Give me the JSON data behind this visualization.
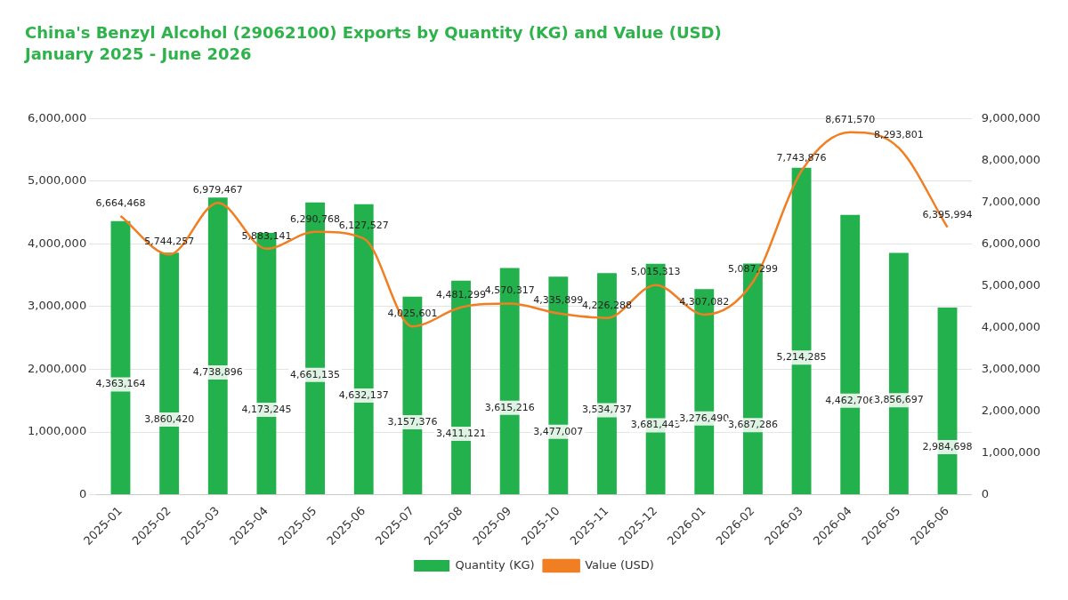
{
  "chart_data": {
    "type": "bar",
    "title": "China's Benzyl Alcohol (29062100) Exports by Quantity (KG) and Value (USD)",
    "subtitle": "January 2025 - June 2026",
    "categories": [
      "2025-01",
      "2025-02",
      "2025-03",
      "2025-04",
      "2025-05",
      "2025-06",
      "2025-07",
      "2025-08",
      "2025-09",
      "2025-10",
      "2025-11",
      "2025-12",
      "2026-01",
      "2026-02",
      "2026-03",
      "2026-04",
      "2026-05",
      "2026-06"
    ],
    "series": [
      {
        "name": "Quantity (KG)",
        "color": "#22b14c",
        "values": [
          4363164,
          3860420,
          4738896,
          4173245,
          4661135,
          4632137,
          3157376,
          3411121,
          3615216,
          3477007,
          3534737,
          3681443,
          3276490,
          3687286,
          5214285,
          4462706,
          3856697,
          2984698
        ],
        "value_labels": [
          "4,363,164",
          "3,860,420",
          "4,738,896",
          "4,173,245",
          "4,661,135",
          "4,632,137",
          "3,157,376",
          "3,411,121",
          "3,615,216",
          "3,477,007",
          "3,534,737",
          "3,681,443",
          "3,276,490",
          "3,687,286",
          "5,214,285",
          "4,462,706",
          "3,856,697",
          "2,984,698"
        ]
      },
      {
        "name": "Value (USD)",
        "type": "line",
        "axis": "y2",
        "color": "#f07f23",
        "marker": "none",
        "values": [
          6664468,
          5744257,
          6979467,
          5883141,
          6290768,
          6127527,
          4025601,
          4481299,
          4570317,
          4335899,
          4226288,
          5015313,
          4307082,
          5087299,
          7743876,
          8671570,
          8293801,
          6395994
        ],
        "value_labels": [
          "6,664,468",
          "5,744,257",
          "6,979,467",
          "5,883,141",
          "6,290,768",
          "6,127,527",
          "4,025,601",
          "4,481,299",
          "4,570,317",
          "4,335,899",
          "4,226,288",
          "5,015,313",
          "4,307,082",
          "5,087,299",
          "7,743,876",
          "8,671,570",
          "8,293,801",
          "6,395,994"
        ]
      }
    ],
    "ylim": [
      0,
      6000000
    ],
    "yticks": [
      {
        "value": 0,
        "label": "0"
      },
      {
        "value": 1000000,
        "label": "1,000,000"
      },
      {
        "value": 2000000,
        "label": "2,000,000"
      },
      {
        "value": 3000000,
        "label": "3,000,000"
      },
      {
        "value": 4000000,
        "label": "4,000,000"
      },
      {
        "value": 5000000,
        "label": "5,000,000"
      },
      {
        "value": 6000000,
        "label": "6,000,000"
      }
    ],
    "y2lim": [
      0,
      9000000
    ],
    "y2ticks": [
      {
        "value": 0,
        "label": "0"
      },
      {
        "value": 1000000,
        "label": "1,000,000"
      },
      {
        "value": 2000000,
        "label": "2,000,000"
      },
      {
        "value": 3000000,
        "label": "3,000,000"
      },
      {
        "value": 4000000,
        "label": "4,000,000"
      },
      {
        "value": 5000000,
        "label": "5,000,000"
      },
      {
        "value": 6000000,
        "label": "6,000,000"
      },
      {
        "value": 7000000,
        "label": "7,000,000"
      },
      {
        "value": 8000000,
        "label": "8,000,000"
      },
      {
        "value": 9000000,
        "label": "9,000,000"
      }
    ],
    "grid": "y",
    "legend": "bottom"
  }
}
